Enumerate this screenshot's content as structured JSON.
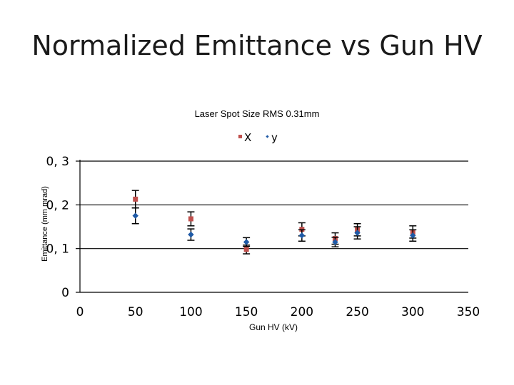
{
  "slide": {
    "title": "Normalized Emittance vs Gun HV"
  },
  "chart_data": {
    "type": "scatter",
    "title": "Laser Spot Size RMS 0.31mm",
    "xlabel": "Gun HV (kV)",
    "ylabel": "Emittance (mm mrad)",
    "xlim": [
      0,
      350
    ],
    "ylim": [
      0,
      0.3
    ],
    "xticks": [
      0,
      50,
      100,
      150,
      200,
      250,
      300,
      350
    ],
    "xtick_labels": [
      "0",
      "50",
      "100",
      "150",
      "200",
      "250",
      "300",
      "350"
    ],
    "yticks": [
      0,
      0.1,
      0.2,
      0.3
    ],
    "ytick_labels": [
      "0",
      "0, 1",
      "0, 2",
      "0, 3"
    ],
    "grid": "horizontal",
    "legend_position": "top-center",
    "series": [
      {
        "name": "X",
        "color": "#c0504d",
        "marker": "square",
        "x": [
          50,
          100,
          150,
          200,
          230,
          250,
          300
        ],
        "y": [
          0.213,
          0.168,
          0.098,
          0.144,
          0.123,
          0.143,
          0.138
        ],
        "err": [
          0.02,
          0.016,
          0.01,
          0.015,
          0.013,
          0.014,
          0.014
        ]
      },
      {
        "name": "y",
        "color": "#1f5aa6",
        "marker": "diamond",
        "x": [
          50,
          100,
          150,
          200,
          230,
          250,
          300
        ],
        "y": [
          0.175,
          0.132,
          0.115,
          0.13,
          0.115,
          0.136,
          0.13
        ],
        "err": [
          0.018,
          0.013,
          0.01,
          0.013,
          0.011,
          0.014,
          0.013
        ]
      }
    ]
  }
}
